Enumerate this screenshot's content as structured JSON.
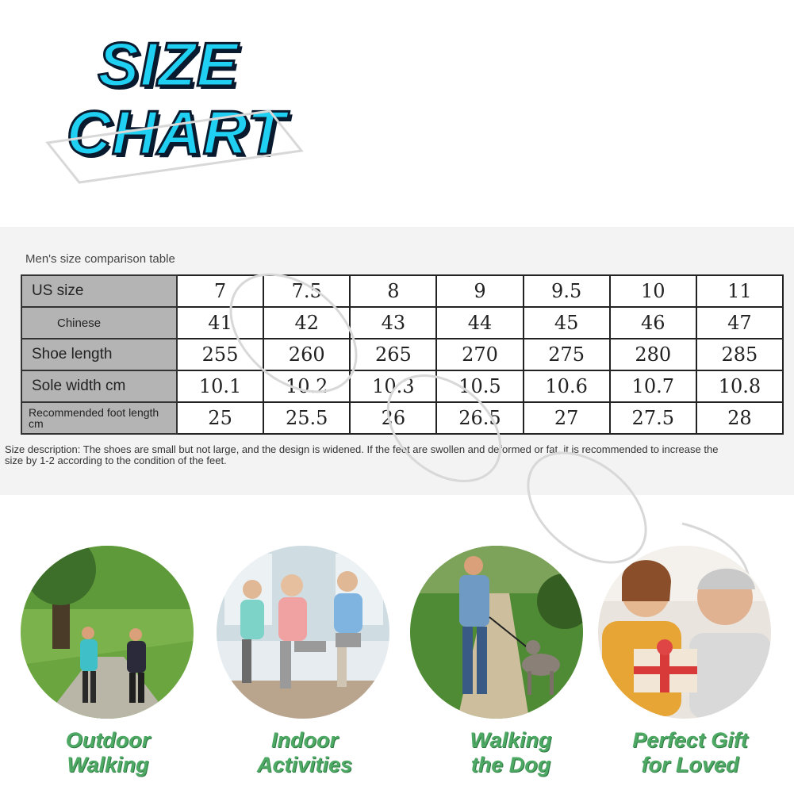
{
  "title": {
    "line1": "SIZE",
    "line2": "CHART"
  },
  "table": {
    "caption": "Men's size comparison table",
    "rows": [
      {
        "label": "US size",
        "values": [
          "7",
          "7.5",
          "8",
          "9",
          "9.5",
          "10",
          "11"
        ]
      },
      {
        "label": "Chinese",
        "values": [
          "41",
          "42",
          "43",
          "44",
          "45",
          "46",
          "47"
        ]
      },
      {
        "label": "Shoe length",
        "values": [
          "255",
          "260",
          "265",
          "270",
          "275",
          "280",
          "285"
        ]
      },
      {
        "label": "Sole width cm",
        "values": [
          "10.1",
          "10.2",
          "10.3",
          "10.5",
          "10.6",
          "10.7",
          "10.8"
        ]
      },
      {
        "label": "Recommended foot length cm",
        "values": [
          "25",
          "25.5",
          "26",
          "26.5",
          "27",
          "27.5",
          "28"
        ]
      }
    ],
    "description": "Size description: The shoes are small but not large, and the design is widened. If the feet are swollen and deformed or fat, it is recommended to increase the size by 1-2 according to the condition of the feet."
  },
  "activities": [
    {
      "line1": "Outdoor",
      "line2": "Walking"
    },
    {
      "line1": "Indoor",
      "line2": "Activities"
    },
    {
      "line1": "Walking",
      "line2": "the Dog"
    },
    {
      "line1": "Perfect Gift",
      "line2": "for Loved"
    }
  ],
  "colors": {
    "title": "#1fd0f2",
    "label": "#4da964",
    "header_cell": "#b4b4b4"
  }
}
